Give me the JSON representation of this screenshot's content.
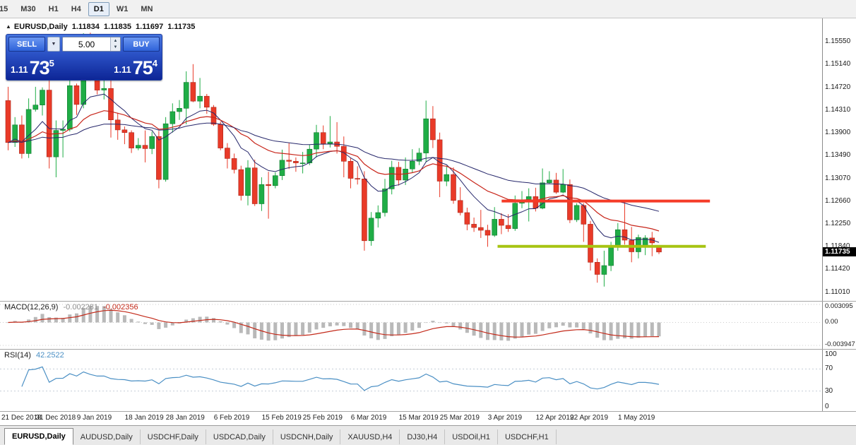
{
  "toolbar": {
    "timeframes": [
      {
        "label": "15",
        "active": false
      },
      {
        "label": "M30",
        "active": false
      },
      {
        "label": "H1",
        "active": false
      },
      {
        "label": "H4",
        "active": false
      },
      {
        "label": "D1",
        "active": true
      },
      {
        "label": "W1",
        "active": false
      },
      {
        "label": "MN",
        "active": false
      }
    ]
  },
  "chart": {
    "header": {
      "icon": "▲",
      "title": "EURUSD,Daily",
      "open": "1.11834",
      "high": "1.11835",
      "low": "1.11697",
      "close": "1.11735"
    },
    "trade_panel": {
      "sell_label": "SELL",
      "buy_label": "BUY",
      "volume": "5.00",
      "dropdown_icon": "▼",
      "spin_up_icon": "▲",
      "spin_down_icon": "▼",
      "bid_small": "1.11",
      "bid_big": "73",
      "bid_sup": "5",
      "ask_small": "1.11",
      "ask_big": "75",
      "ask_sup": "4"
    },
    "price_axis": {
      "labels": [
        "1.15550",
        "1.15140",
        "1.14720",
        "1.14310",
        "1.13900",
        "1.13490",
        "1.13070",
        "1.12660",
        "1.12250",
        "1.11840",
        "1.11420",
        "1.11010"
      ],
      "current": "1.11735"
    }
  },
  "chart_data": {
    "type": "candlestick",
    "symbol": "EURUSD",
    "period": "Daily",
    "price_range": {
      "max": 1.1597,
      "min": 1.1085
    },
    "colors": {
      "up": "#1fad46",
      "up_border": "#117a30",
      "down": "#e93a28",
      "down_border": "#aa281c",
      "background": "#ffffff"
    },
    "candles": [
      [
        1.1448,
        1.1473,
        1.1358,
        1.1372
      ],
      [
        1.1372,
        1.1418,
        1.1364,
        1.1404
      ],
      [
        1.1404,
        1.1421,
        1.1343,
        1.1352
      ],
      [
        1.1352,
        1.1452,
        1.1344,
        1.1432
      ],
      [
        1.1432,
        1.1473,
        1.1428,
        1.144
      ],
      [
        1.144,
        1.1472,
        1.1421,
        1.1467
      ],
      [
        1.1467,
        1.1497,
        1.1325,
        1.1346
      ],
      [
        1.1346,
        1.1412,
        1.1309,
        1.1394
      ],
      [
        1.1394,
        1.1412,
        1.1345,
        1.1396
      ],
      [
        1.1396,
        1.1485,
        1.1392,
        1.1475
      ],
      [
        1.1475,
        1.1479,
        1.1422,
        1.1441
      ],
      [
        1.1441,
        1.157,
        1.1434,
        1.1545
      ],
      [
        1.1545,
        1.1571,
        1.1484,
        1.15
      ],
      [
        1.15,
        1.154,
        1.1459,
        1.1467
      ],
      [
        1.1467,
        1.1491,
        1.145,
        1.147
      ],
      [
        1.147,
        1.149,
        1.1381,
        1.1413
      ],
      [
        1.1413,
        1.1426,
        1.1377,
        1.1395
      ],
      [
        1.1395,
        1.1401,
        1.1369,
        1.139
      ],
      [
        1.139,
        1.1394,
        1.1353,
        1.1362
      ],
      [
        1.1362,
        1.138,
        1.1358,
        1.1367
      ],
      [
        1.1367,
        1.1394,
        1.1336,
        1.1361
      ],
      [
        1.1361,
        1.1392,
        1.1351,
        1.1383
      ],
      [
        1.1383,
        1.1393,
        1.1289,
        1.1305
      ],
      [
        1.1305,
        1.1418,
        1.1301,
        1.1406
      ],
      [
        1.1406,
        1.1443,
        1.139,
        1.1428
      ],
      [
        1.1428,
        1.1449,
        1.1413,
        1.1434
      ],
      [
        1.1434,
        1.1501,
        1.1405,
        1.1481
      ],
      [
        1.1481,
        1.1514,
        1.1445,
        1.1447
      ],
      [
        1.1447,
        1.1489,
        1.1434,
        1.1456
      ],
      [
        1.1456,
        1.146,
        1.1424,
        1.1436
      ],
      [
        1.1436,
        1.144,
        1.1402,
        1.1405
      ],
      [
        1.1405,
        1.141,
        1.1358,
        1.1362
      ],
      [
        1.1362,
        1.1371,
        1.1325,
        1.1343
      ],
      [
        1.1343,
        1.1352,
        1.1316,
        1.1323
      ],
      [
        1.1323,
        1.133,
        1.1267,
        1.1276
      ],
      [
        1.1276,
        1.134,
        1.1258,
        1.1326
      ],
      [
        1.1326,
        1.1341,
        1.1257,
        1.1261
      ],
      [
        1.1261,
        1.1309,
        1.1248,
        1.1296
      ],
      [
        1.1296,
        1.1319,
        1.1234,
        1.1294
      ],
      [
        1.1294,
        1.1318,
        1.1289,
        1.1312
      ],
      [
        1.1312,
        1.1359,
        1.1304,
        1.134
      ],
      [
        1.134,
        1.1371,
        1.1324,
        1.1338
      ],
      [
        1.1338,
        1.1345,
        1.1319,
        1.1335
      ],
      [
        1.1335,
        1.1355,
        1.1316,
        1.1335
      ],
      [
        1.1335,
        1.1368,
        1.1331,
        1.136
      ],
      [
        1.136,
        1.1404,
        1.1345,
        1.139
      ],
      [
        1.139,
        1.1403,
        1.136,
        1.137
      ],
      [
        1.137,
        1.142,
        1.1363,
        1.1373
      ],
      [
        1.1373,
        1.1409,
        1.1352,
        1.1365
      ],
      [
        1.1365,
        1.1383,
        1.1309,
        1.1338
      ],
      [
        1.1338,
        1.1344,
        1.1289,
        1.1307
      ],
      [
        1.1307,
        1.1329,
        1.1296,
        1.1306
      ],
      [
        1.1306,
        1.132,
        1.1176,
        1.1194
      ],
      [
        1.1194,
        1.1246,
        1.1185,
        1.1235
      ],
      [
        1.1235,
        1.1258,
        1.1218,
        1.1245
      ],
      [
        1.1245,
        1.1306,
        1.1238,
        1.1288
      ],
      [
        1.1288,
        1.1339,
        1.1278,
        1.1327
      ],
      [
        1.1327,
        1.1337,
        1.1294,
        1.1304
      ],
      [
        1.1304,
        1.1345,
        1.1295,
        1.1324
      ],
      [
        1.1324,
        1.136,
        1.1318,
        1.1338
      ],
      [
        1.1338,
        1.1362,
        1.1331,
        1.1353
      ],
      [
        1.1353,
        1.1448,
        1.1336,
        1.1415
      ],
      [
        1.1415,
        1.1438,
        1.1362,
        1.1377
      ],
      [
        1.1377,
        1.139,
        1.1273,
        1.1302
      ],
      [
        1.1302,
        1.133,
        1.1293,
        1.1314
      ],
      [
        1.1314,
        1.1327,
        1.1261,
        1.1267
      ],
      [
        1.1267,
        1.1291,
        1.124,
        1.1245
      ],
      [
        1.1245,
        1.1254,
        1.1213,
        1.1224
      ],
      [
        1.1224,
        1.1236,
        1.121,
        1.1218
      ],
      [
        1.1218,
        1.125,
        1.1199,
        1.1213
      ],
      [
        1.1213,
        1.1223,
        1.1183,
        1.1204
      ],
      [
        1.1204,
        1.1255,
        1.1201,
        1.1233
      ],
      [
        1.1233,
        1.1244,
        1.1206,
        1.1222
      ],
      [
        1.1222,
        1.1242,
        1.121,
        1.1216
      ],
      [
        1.1216,
        1.1276,
        1.1212,
        1.1262
      ],
      [
        1.1262,
        1.1284,
        1.1253,
        1.1265
      ],
      [
        1.1265,
        1.1289,
        1.1229,
        1.1274
      ],
      [
        1.1274,
        1.129,
        1.1247,
        1.1253
      ],
      [
        1.1253,
        1.1325,
        1.1251,
        1.1299
      ],
      [
        1.1299,
        1.132,
        1.1298,
        1.1304
      ],
      [
        1.1304,
        1.1317,
        1.1279,
        1.1282
      ],
      [
        1.1282,
        1.1324,
        1.128,
        1.1296
      ],
      [
        1.1296,
        1.1305,
        1.1226,
        1.1232
      ],
      [
        1.1232,
        1.1262,
        1.1228,
        1.1258
      ],
      [
        1.1258,
        1.1262,
        1.1192,
        1.1224
      ],
      [
        1.1224,
        1.123,
        1.114,
        1.1155
      ],
      [
        1.1155,
        1.1162,
        1.1118,
        1.1133
      ],
      [
        1.1133,
        1.1176,
        1.1111,
        1.1149
      ],
      [
        1.1149,
        1.1192,
        1.1139,
        1.1185
      ],
      [
        1.1185,
        1.1226,
        1.1176,
        1.1214
      ],
      [
        1.1214,
        1.1265,
        1.1187,
        1.1195
      ],
      [
        1.1195,
        1.1219,
        1.1155,
        1.1174
      ],
      [
        1.1174,
        1.1205,
        1.1162,
        1.12
      ],
      [
        1.1185,
        1.1204,
        1.1168,
        1.1199
      ],
      [
        1.1199,
        1.121,
        1.1166,
        1.119
      ],
      [
        1.11834,
        1.11835,
        1.11697,
        1.11735
      ]
    ],
    "x_labels": [
      {
        "text": "21 Dec 2018",
        "index": 0
      },
      {
        "text": "31 Dec 2018",
        "index": 5
      },
      {
        "text": "9 Jan 2019",
        "index": 11
      },
      {
        "text": "18 Jan 2019",
        "index": 18
      },
      {
        "text": "28 Jan 2019",
        "index": 24
      },
      {
        "text": "6 Feb 2019",
        "index": 31
      },
      {
        "text": "15 Feb 2019",
        "index": 38
      },
      {
        "text": "25 Feb 2019",
        "index": 44
      },
      {
        "text": "6 Mar 2019",
        "index": 51
      },
      {
        "text": "15 Mar 2019",
        "index": 58
      },
      {
        "text": "25 Mar 2019",
        "index": 64
      },
      {
        "text": "3 Apr 2019",
        "index": 71
      },
      {
        "text": "12 Apr 2019",
        "index": 78
      },
      {
        "text": "22 Apr 2019",
        "index": 83
      },
      {
        "text": "1 May 2019",
        "index": 90
      }
    ],
    "overlays": [
      {
        "name": "ma-fast",
        "period": 9,
        "color": "#26276b",
        "width": 1
      },
      {
        "name": "ma-medium",
        "period": 21,
        "color": "#c8261b",
        "width": 1.2
      },
      {
        "name": "ma-slow",
        "period": 45,
        "color": "#26276b",
        "width": 1
      }
    ],
    "levels": [
      {
        "name": "resistance-line",
        "price": 1.1266,
        "color": "#f53b28",
        "start": 72.4,
        "end": 102.8,
        "width": 4
      },
      {
        "name": "support-line",
        "price": 1.1184,
        "color": "#a7c412",
        "start": 71.8,
        "end": 102.2,
        "width": 4
      }
    ],
    "indicators": {
      "macd": {
        "label": "MACD(12,26,9)",
        "main_value": "-0.002281",
        "signal_value": "-0.002356",
        "params": {
          "fast": 12,
          "slow": 26,
          "signal": 9
        },
        "axis_labels": [
          "0.003095",
          "0.00",
          "-0.003947"
        ],
        "range": {
          "max": 0.003095,
          "min": -0.003947
        },
        "colors": {
          "histogram": "#b9b9b9",
          "signal": "#c32a1a"
        }
      },
      "rsi": {
        "label": "RSI(14)",
        "value": "42.2522",
        "period": 14,
        "axis_labels": [
          "100",
          "70",
          "30",
          "0"
        ],
        "levels": [
          70,
          30
        ],
        "color": "#4a8fc4"
      }
    }
  },
  "tabs": [
    {
      "label": "EURUSD,Daily",
      "active": true
    },
    {
      "label": "AUDUSD,Daily",
      "active": false
    },
    {
      "label": "USDCHF,Daily",
      "active": false
    },
    {
      "label": "USDCAD,Daily",
      "active": false
    },
    {
      "label": "USDCNH,Daily",
      "active": false
    },
    {
      "label": "XAUUSD,H4",
      "active": false
    },
    {
      "label": "DJ30,H4",
      "active": false
    },
    {
      "label": "USDOil,H1",
      "active": false
    },
    {
      "label": "USDCHF,H1",
      "active": false
    }
  ]
}
